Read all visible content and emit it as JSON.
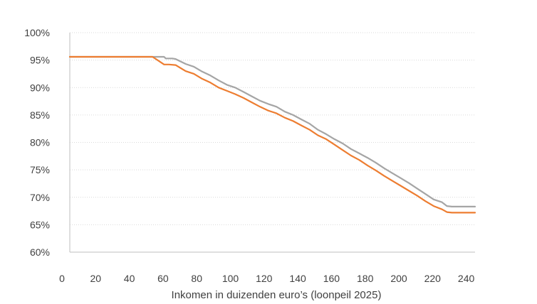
{
  "chart_data": {
    "type": "line",
    "title": "",
    "xlabel": "Inkomen in duizenden euro’s (loonpeil 2025)",
    "ylabel": "",
    "xlim": [
      0,
      245
    ],
    "ylim": [
      60,
      100
    ],
    "xticks": [
      "0",
      "20",
      "40",
      "60",
      "80",
      "100",
      "120",
      "140",
      "160",
      "180",
      "200",
      "220",
      "240"
    ],
    "yticks": [
      "60%",
      "65%",
      "70%",
      "75%",
      "80%",
      "85%",
      "90%",
      "95%",
      "100%"
    ],
    "grid": "horizontal dotted",
    "legend": "none",
    "series": [
      {
        "color": "#a5a5a5",
        "x": [
          0,
          20,
          40,
          53,
          57,
          58,
          62,
          64,
          70,
          75,
          80,
          85,
          90,
          95,
          100,
          105,
          110,
          115,
          120,
          125,
          130,
          135,
          140,
          145,
          150,
          155,
          160,
          165,
          170,
          175,
          180,
          185,
          190,
          195,
          200,
          205,
          210,
          215,
          220,
          225,
          228,
          231,
          235,
          240,
          245
        ],
        "values": [
          95.6,
          95.6,
          95.6,
          95.6,
          95.6,
          95.3,
          95.3,
          95.2,
          94.3,
          93.8,
          92.9,
          92.2,
          91.3,
          90.5,
          90.0,
          89.2,
          88.4,
          87.6,
          87.0,
          86.5,
          85.6,
          85.0,
          84.2,
          83.4,
          82.3,
          81.5,
          80.6,
          79.8,
          78.8,
          78.0,
          77.2,
          76.3,
          75.3,
          74.4,
          73.5,
          72.6,
          71.6,
          70.6,
          69.6,
          69.1,
          68.4,
          68.3,
          68.3,
          68.3,
          68.3
        ]
      },
      {
        "color": "#ed7d31",
        "x": [
          0,
          20,
          40,
          50,
          53,
          57,
          60,
          64,
          70,
          75,
          80,
          85,
          90,
          95,
          100,
          105,
          110,
          115,
          120,
          125,
          130,
          135,
          140,
          145,
          150,
          155,
          160,
          165,
          170,
          175,
          180,
          185,
          190,
          195,
          200,
          205,
          210,
          215,
          220,
          225,
          228,
          231,
          235,
          240,
          245
        ],
        "values": [
          95.6,
          95.6,
          95.6,
          95.6,
          95.0,
          94.2,
          94.2,
          94.1,
          93.0,
          92.5,
          91.6,
          90.9,
          90.0,
          89.4,
          88.8,
          88.1,
          87.3,
          86.5,
          85.8,
          85.3,
          84.5,
          83.9,
          83.1,
          82.3,
          81.3,
          80.6,
          79.6,
          78.6,
          77.6,
          76.8,
          75.8,
          74.9,
          73.9,
          73.0,
          72.1,
          71.2,
          70.3,
          69.3,
          68.4,
          67.8,
          67.3,
          67.2,
          67.2,
          67.2,
          67.2
        ]
      }
    ]
  }
}
